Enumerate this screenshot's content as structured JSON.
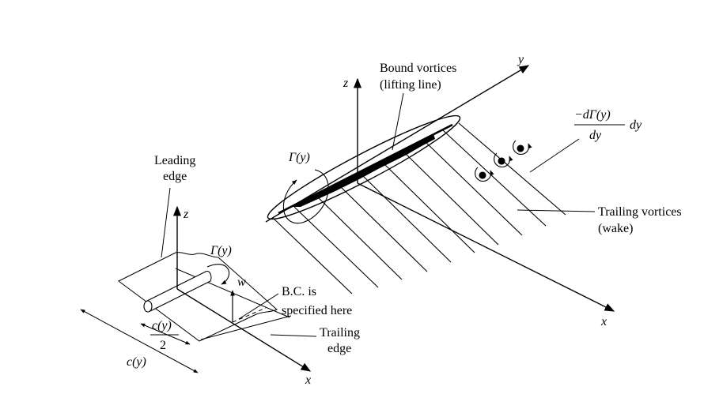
{
  "colors": {
    "ink": "#000000",
    "background": "#ffffff"
  },
  "labels": {
    "bound_vortices_line1": "Bound vortices",
    "bound_vortices_line2": "(lifting line)",
    "y_axis": "y",
    "z_axis_main": "z",
    "x_axis_main": "x",
    "gamma_main": "Γ(y)",
    "dgamma_num": "−dΓ(y)",
    "dgamma_den": "dy",
    "dgamma_tail": "dy",
    "trailing_vortices_line1": "Trailing vortices",
    "trailing_vortices_line2": "(wake)",
    "leading_edge_line1": "Leading",
    "leading_edge_line2": "edge",
    "z_axis_section": "z",
    "gamma_section": "Γ(y)",
    "w_label": "w",
    "bc_line1": "B.C. is",
    "bc_line2": "specified here",
    "half_chord_num": "c(y)",
    "half_chord_den": "2",
    "chord": "c(y)",
    "trailing_edge_line1": "Trailing",
    "trailing_edge_line2": "edge",
    "x_axis_section": "x"
  }
}
